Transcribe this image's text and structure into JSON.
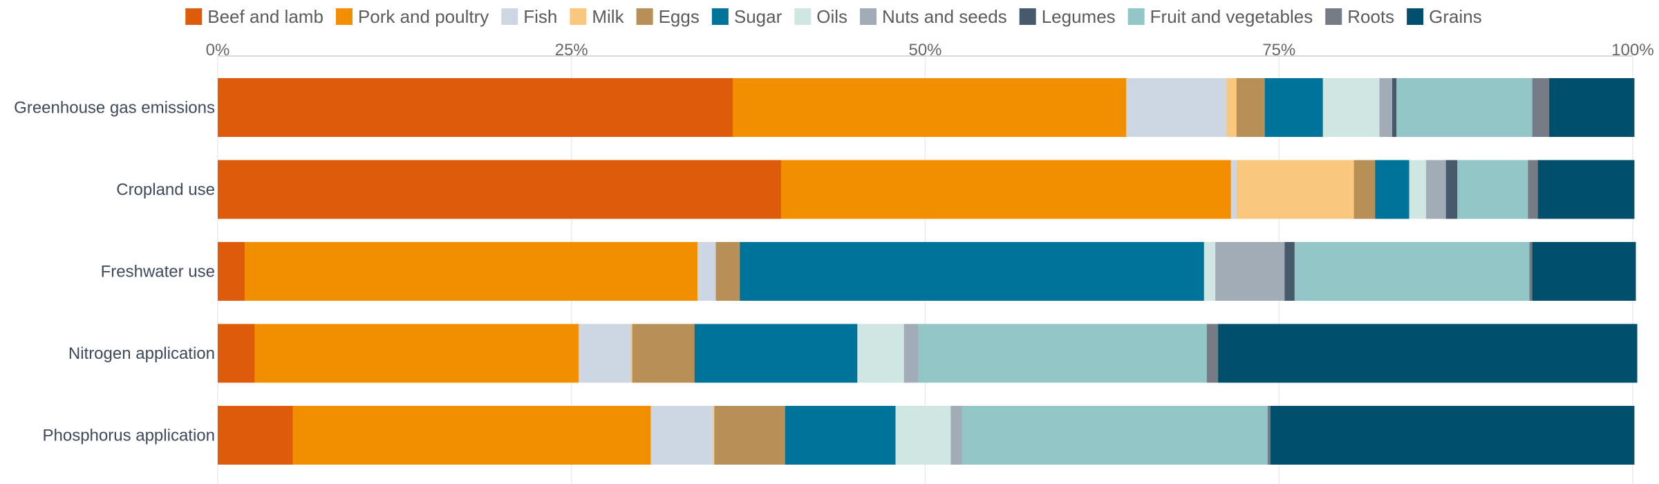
{
  "chart_data": {
    "type": "bar",
    "orientation": "horizontal",
    "stacked": true,
    "legend_position": "top",
    "grid": true,
    "xlim": [
      0,
      100
    ],
    "tick_labels": [
      "0%",
      "25%",
      "50%",
      "75%",
      "100%"
    ],
    "categories": [
      "Greenhouse gas emissions",
      "Cropland use",
      "Freshwater use",
      "Nitrogen application",
      "Phosphorus application"
    ],
    "series": [
      {
        "name": "Beef and lamb",
        "color": "#dd5b0a",
        "values": [
          36.4,
          39.8,
          1.9,
          2.6,
          5.3
        ]
      },
      {
        "name": "Pork and poultry",
        "color": "#f28f00",
        "values": [
          27.8,
          31.8,
          32.0,
          22.9,
          25.3
        ]
      },
      {
        "name": "Fish",
        "color": "#cdd7e4",
        "values": [
          7.1,
          0.4,
          1.3,
          3.7,
          4.4
        ]
      },
      {
        "name": "Milk",
        "color": "#f9c77d",
        "values": [
          0.7,
          8.3,
          0.0,
          0.1,
          0.1
        ]
      },
      {
        "name": "Eggs",
        "color": "#b88f57",
        "values": [
          2.0,
          1.5,
          1.7,
          4.4,
          5.0
        ]
      },
      {
        "name": "Sugar",
        "color": "#00739a",
        "values": [
          4.1,
          2.4,
          32.8,
          11.5,
          7.8
        ]
      },
      {
        "name": "Oils",
        "color": "#cfe6e3",
        "values": [
          4.0,
          1.2,
          0.8,
          3.3,
          3.9
        ]
      },
      {
        "name": "Nuts and seeds",
        "color": "#a1acb7",
        "values": [
          0.9,
          1.4,
          4.9,
          1.0,
          0.8
        ]
      },
      {
        "name": "Legumes",
        "color": "#475a6b",
        "values": [
          0.3,
          0.8,
          0.7,
          0.0,
          0.0
        ]
      },
      {
        "name": "Fruit and vegetables",
        "color": "#93c7c7",
        "values": [
          9.6,
          5.0,
          16.6,
          20.4,
          21.6
        ]
      },
      {
        "name": "Roots",
        "color": "#757c85",
        "values": [
          1.2,
          0.7,
          0.2,
          0.8,
          0.2
        ]
      },
      {
        "name": "Grains",
        "color": "#004f6c",
        "values": [
          6.0,
          6.8,
          7.3,
          29.6,
          25.7
        ]
      }
    ]
  }
}
